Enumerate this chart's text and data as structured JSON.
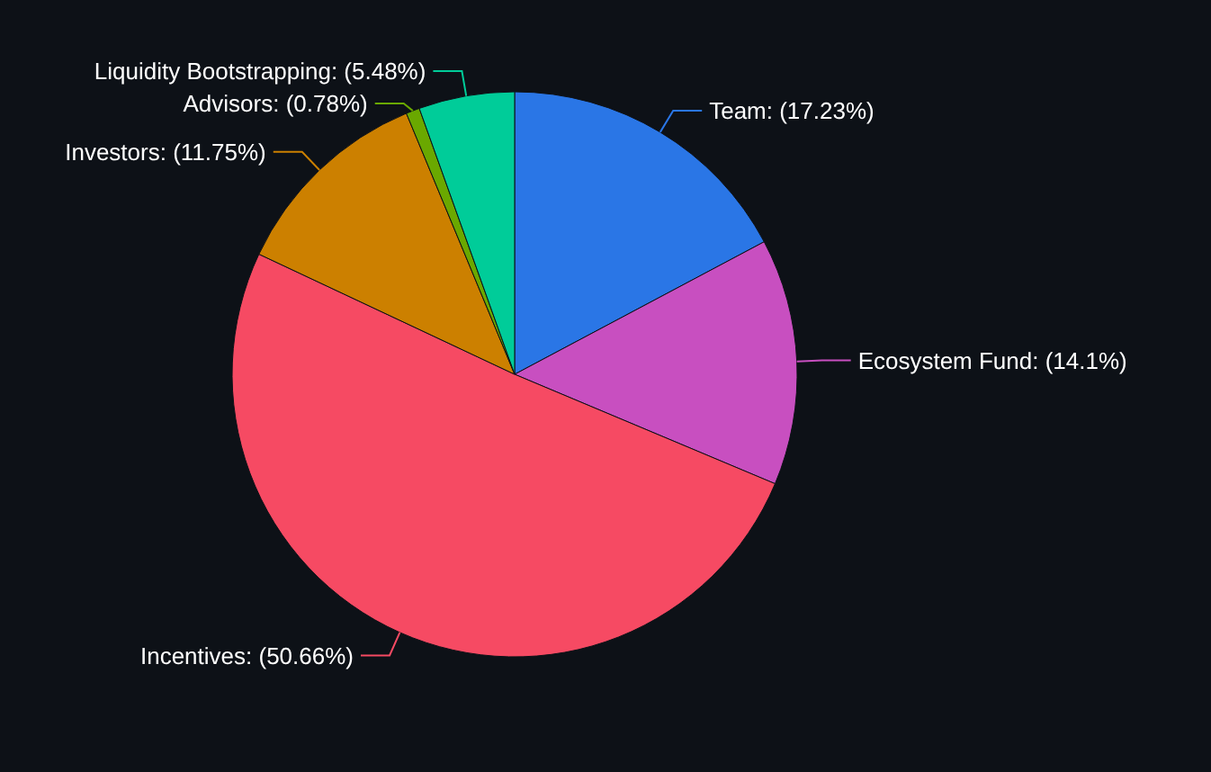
{
  "chart_data": {
    "type": "pie",
    "categories": [
      "Team",
      "Ecosystem Fund",
      "Incentives",
      "Investors",
      "Advisors",
      "Liquidity Bootstrapping"
    ],
    "values": [
      17.23,
      14.1,
      50.66,
      11.75,
      0.78,
      5.48
    ],
    "value_labels": [
      "(17.23%)",
      "(14.1%)",
      "(50.66%)",
      "(11.75%)",
      "(0.78%)",
      "(5.48%)"
    ],
    "colors": [
      "#2a76e6",
      "#c84fc0",
      "#f64a63",
      "#cc8000",
      "#6aa800",
      "#00cc99"
    ]
  }
}
